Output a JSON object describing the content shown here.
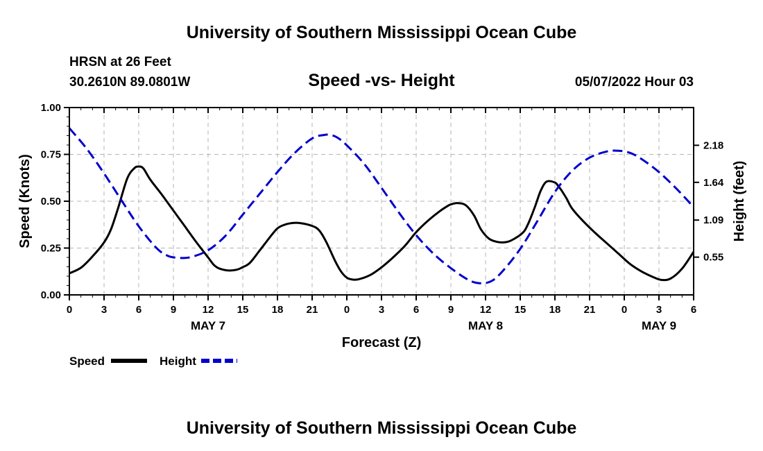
{
  "header": {
    "title": "University of Southern Mississippi Ocean Cube",
    "station": "HRSN at 26 Feet",
    "location": "30.2610N  89.0801W",
    "datetime": "05/07/2022 Hour 03",
    "footer_title": "University of Southern Mississippi Ocean Cube"
  },
  "chart_data": {
    "type": "line",
    "title": "Speed -vs- Height",
    "xlabel": "Forecast (Z)",
    "ylabel": "Speed (Knots)",
    "y2label": "Height (feet)",
    "xlim": [
      0,
      54
    ],
    "ylim": [
      0,
      1
    ],
    "y2lim": [
      0,
      2.73
    ],
    "x_ticks": [
      0,
      3,
      6,
      9,
      12,
      15,
      18,
      21,
      24,
      27,
      30,
      33,
      36,
      39,
      42,
      45,
      48,
      51,
      54
    ],
    "x_tick_labels": [
      "0",
      "3",
      "6",
      "9",
      "12",
      "15",
      "18",
      "21",
      "0",
      "3",
      "6",
      "9",
      "12",
      "15",
      "18",
      "21",
      "0",
      "3",
      "6"
    ],
    "date_labels": [
      {
        "x": 12,
        "label": "MAY 7"
      },
      {
        "x": 36,
        "label": "MAY 8"
      },
      {
        "x": 51,
        "label": "MAY 9"
      }
    ],
    "y_ticks": [
      0,
      0.25,
      0.5,
      0.75,
      1.0
    ],
    "y_tick_labels": [
      "0.00",
      "0.25",
      "0.50",
      "0.75",
      "1.00"
    ],
    "y2_ticks": [
      0.55,
      1.09,
      1.64,
      2.18
    ],
    "y2_tick_labels": [
      "0.55",
      "1.09",
      "1.64",
      "2.18"
    ],
    "grid": true,
    "legend": "bottom-left",
    "series": [
      {
        "name": "Speed",
        "axis": "left",
        "color": "#000000",
        "dash": "solid",
        "x": [
          0,
          1,
          2,
          3,
          3.6,
          4.2,
          5,
          5.6,
          6,
          6.4,
          7,
          8,
          9,
          10,
          11,
          12,
          12.5,
          13,
          13.8,
          14.5,
          15,
          15.6,
          16.5,
          17.5,
          18,
          18.5,
          19.2,
          20,
          21,
          21.6,
          22.2,
          23,
          23.5,
          24,
          24.5,
          25,
          26,
          27,
          28,
          29,
          30,
          31,
          32,
          32.6,
          33,
          33.6,
          34.3,
          35,
          35.6,
          36.3,
          37,
          37.5,
          38,
          38.5,
          39,
          39.4,
          39.8,
          40.3,
          40.8,
          41.3,
          42,
          42.3,
          42.6,
          43,
          43.5,
          44.5,
          45.5,
          46.5,
          47.5,
          48.5,
          49.5,
          50.5,
          51.2,
          52,
          53,
          54
        ],
        "values": [
          0.115,
          0.145,
          0.205,
          0.28,
          0.35,
          0.46,
          0.62,
          0.675,
          0.685,
          0.675,
          0.615,
          0.535,
          0.45,
          0.365,
          0.28,
          0.2,
          0.16,
          0.14,
          0.13,
          0.135,
          0.148,
          0.17,
          0.24,
          0.32,
          0.355,
          0.372,
          0.383,
          0.383,
          0.368,
          0.345,
          0.285,
          0.18,
          0.125,
          0.092,
          0.082,
          0.083,
          0.105,
          0.147,
          0.2,
          0.26,
          0.335,
          0.395,
          0.445,
          0.47,
          0.483,
          0.49,
          0.478,
          0.425,
          0.35,
          0.3,
          0.283,
          0.28,
          0.285,
          0.3,
          0.32,
          0.345,
          0.395,
          0.475,
          0.56,
          0.605,
          0.6,
          0.58,
          0.555,
          0.515,
          0.46,
          0.39,
          0.33,
          0.275,
          0.22,
          0.165,
          0.125,
          0.095,
          0.08,
          0.087,
          0.14,
          0.23
        ]
      },
      {
        "name": "Height",
        "axis": "right",
        "color": "#0000CC",
        "dash": "dashed",
        "x": [
          0,
          1.5,
          3,
          4.5,
          6,
          7.5,
          8.5,
          9.5,
          10.5,
          12,
          13.5,
          15,
          16.5,
          18,
          19.5,
          21,
          22,
          22.6,
          23.2,
          24,
          25.5,
          27,
          28.5,
          30,
          31.5,
          33,
          34.5,
          35.5,
          36.5,
          37.5,
          39,
          40.5,
          42,
          43.5,
          45,
          46.5,
          47.5,
          48.5,
          49.5,
          51,
          52.5,
          54
        ],
        "values": [
          2.43,
          2.13,
          1.77,
          1.38,
          1.0,
          0.69,
          0.57,
          0.54,
          0.55,
          0.65,
          0.86,
          1.17,
          1.48,
          1.79,
          2.07,
          2.28,
          2.33,
          2.33,
          2.29,
          2.18,
          1.91,
          1.56,
          1.2,
          0.87,
          0.6,
          0.39,
          0.22,
          0.17,
          0.2,
          0.35,
          0.67,
          1.08,
          1.5,
          1.81,
          2.0,
          2.09,
          2.1,
          2.07,
          1.98,
          1.79,
          1.55,
          1.28
        ]
      }
    ]
  }
}
